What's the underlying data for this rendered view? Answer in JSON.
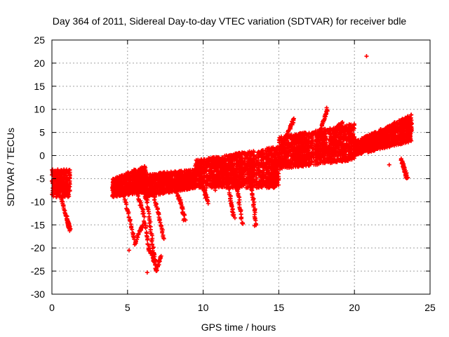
{
  "chart_data": {
    "type": "scatter",
    "title": "Day 364 of 2011, Sidereal Day-to-day VTEC variation (SDTVAR) for receiver bdle",
    "xlabel": "GPS time / hours",
    "ylabel": "SDTVAR / TECUs",
    "xlim": [
      0,
      25
    ],
    "ylim": [
      -30,
      25
    ],
    "xticks": [
      0,
      5,
      10,
      15,
      20,
      25
    ],
    "yticks": [
      -30,
      -25,
      -20,
      -15,
      -10,
      -5,
      0,
      5,
      10,
      15,
      20,
      25
    ],
    "grid": true,
    "marker": "+",
    "color": "#ff0000",
    "series": [
      {
        "name": "",
        "bands": [
          {
            "x0": 0.0,
            "x1": 1.2,
            "ylo0": -9,
            "ylo1": -9,
            "yhi0": -3,
            "yhi1": -3
          },
          {
            "x0": 4.0,
            "x1": 6.2,
            "ylo0": -9,
            "ylo1": -8,
            "yhi0": -5,
            "yhi1": -2
          },
          {
            "x0": 6.2,
            "x1": 9.5,
            "ylo0": -9,
            "ylo1": -7,
            "yhi0": -4,
            "yhi1": -3
          },
          {
            "x0": 9.5,
            "x1": 15.0,
            "ylo0": -7,
            "ylo1": -7,
            "yhi0": -1,
            "yhi1": 2
          },
          {
            "x0": 15.0,
            "x1": 20.0,
            "ylo0": -3,
            "ylo1": -1,
            "yhi0": 4,
            "yhi1": 7
          },
          {
            "x0": 20.0,
            "x1": 23.8,
            "ylo0": 0,
            "ylo1": 3,
            "yhi0": 3,
            "yhi1": 9
          }
        ],
        "arcs": [
          {
            "x": [
              0.0,
              0.6,
              1.0
            ],
            "y": [
              -5,
              -9,
              -14
            ]
          },
          {
            "x": [
              1.0,
              1.1,
              1.2
            ],
            "y": [
              -14,
              -15,
              -16
            ]
          },
          {
            "x": [
              4.5,
              5.0,
              5.5,
              6.0
            ],
            "y": [
              -5,
              -12,
              -19,
              -15
            ]
          },
          {
            "x": [
              5.5,
              6.0,
              6.4,
              6.8
            ],
            "y": [
              -7,
              -12,
              -20,
              -23
            ]
          },
          {
            "x": [
              5.8,
              6.3,
              6.6,
              6.9,
              7.2
            ],
            "y": [
              -5,
              -10,
              -18,
              -25,
              -22
            ]
          },
          {
            "x": [
              6.5,
              7.0,
              7.4
            ],
            "y": [
              -6,
              -12,
              -18
            ]
          },
          {
            "x": [
              8.0,
              8.5,
              8.8
            ],
            "y": [
              -6,
              -10,
              -14
            ]
          },
          {
            "x": [
              9.5,
              10.0,
              10.3
            ],
            "y": [
              -2,
              -7,
              -10
            ]
          },
          {
            "x": [
              11.5,
              11.8,
              12.0
            ],
            "y": [
              -3,
              -9,
              -13
            ]
          },
          {
            "x": [
              12.0,
              12.3,
              12.6
            ],
            "y": [
              -3,
              -8,
              -15
            ]
          },
          {
            "x": [
              13.0,
              13.3,
              13.5
            ],
            "y": [
              -4,
              -9,
              -15
            ]
          },
          {
            "x": [
              15.2,
              15.6,
              16.0
            ],
            "y": [
              2,
              5,
              8
            ]
          },
          {
            "x": [
              17.5,
              17.9,
              18.2
            ],
            "y": [
              3,
              7,
              10
            ]
          },
          {
            "x": [
              18.5,
              18.9,
              19.2
            ],
            "y": [
              3,
              6,
              7
            ]
          },
          {
            "x": [
              21.5,
              22.5,
              23.5
            ],
            "y": [
              2,
              5,
              7
            ]
          },
          {
            "x": [
              23.1,
              23.3,
              23.5
            ],
            "y": [
              -1,
              -3,
              -5
            ]
          }
        ],
        "points": [
          {
            "x": 20.8,
            "y": 21.5
          },
          {
            "x": 10.8,
            "y": -7.5
          },
          {
            "x": 6.3,
            "y": -25.3
          },
          {
            "x": 5.1,
            "y": -20.5
          },
          {
            "x": 1.2,
            "y": -16
          },
          {
            "x": 12.1,
            "y": -13.5
          },
          {
            "x": 13.4,
            "y": -15.2
          },
          {
            "x": 23.4,
            "y": -4.8
          },
          {
            "x": 22.3,
            "y": -2
          },
          {
            "x": 8.7,
            "y": -14
          }
        ]
      }
    ]
  }
}
